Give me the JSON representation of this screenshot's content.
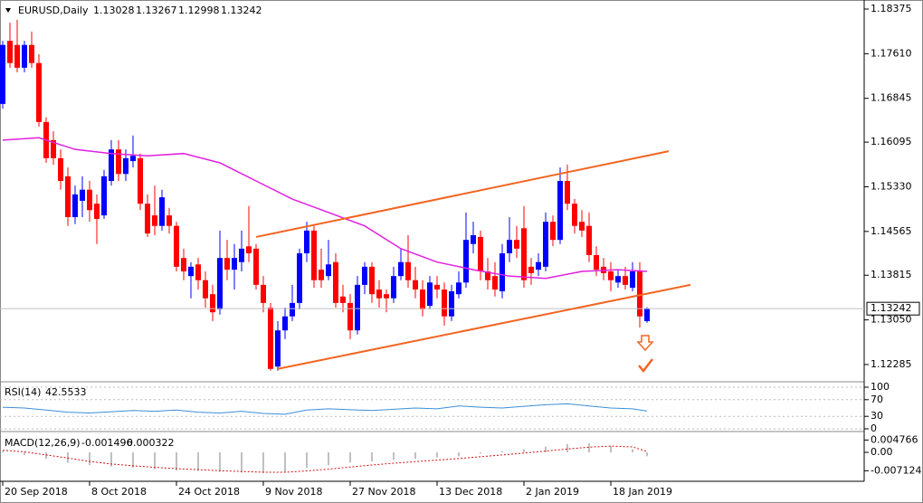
{
  "chart_data": {
    "type": "candlestick",
    "title": "EURUSD,Daily",
    "categories": [
      "20 Sep 2018",
      null,
      null,
      null,
      null,
      null,
      null,
      null,
      null,
      null,
      null,
      null,
      "8 Oct 2018",
      null,
      null,
      null,
      null,
      null,
      null,
      null,
      null,
      null,
      null,
      null,
      "24 Oct 2018",
      null,
      null,
      null,
      null,
      null,
      null,
      null,
      null,
      null,
      null,
      null,
      "9 Nov 2018",
      null,
      null,
      null,
      null,
      null,
      null,
      null,
      null,
      null,
      null,
      null,
      "27 Nov 2018",
      null,
      null,
      null,
      null,
      null,
      null,
      null,
      null,
      null,
      null,
      null,
      "13 Dec 2018",
      null,
      null,
      null,
      null,
      null,
      null,
      null,
      null,
      null,
      null,
      null,
      "2 Jan 2019",
      null,
      null,
      null,
      null,
      null,
      null,
      null,
      null,
      null,
      null,
      null,
      "18 Jan 2019",
      null,
      null,
      null,
      null,
      null
    ],
    "open": [
      1.1675,
      1.1783,
      1.1776,
      1.1737,
      1.1776,
      1.1745,
      1.1644,
      1.1613,
      1.1582,
      1.1551,
      1.1481,
      1.1509,
      1.1528,
      1.1504,
      1.1484,
      1.1543,
      1.1597,
      1.1555,
      1.1577,
      1.1582,
      1.1504,
      1.1484,
      1.1466,
      1.1484,
      1.1466,
      1.1411,
      1.138,
      1.14,
      1.1373,
      1.1349,
      1.1323,
      1.1411,
      1.1391,
      1.1404,
      1.1431,
      1.1427,
      1.1365,
      1.1326,
      1.1225,
      1.1287,
      1.1311,
      1.1334,
      1.1419,
      1.1458,
      1.1391,
      1.138,
      1.1404,
      1.1345,
      1.1334,
      1.1287,
      1.1365,
      1.1396,
      1.1357,
      1.1349,
      1.1342,
      1.138,
      1.1404,
      1.1373,
      1.1357,
      1.1329,
      1.1365,
      1.1357,
      1.1311,
      1.1349,
      1.1369,
      1.1435,
      1.1447,
      1.1388,
      1.138,
      1.1354,
      1.1419,
      1.1442,
      1.1462,
      1.1396,
      1.1391,
      1.1396,
      1.1473,
      1.1442,
      1.1543,
      1.1504,
      1.1473,
      1.1466,
      1.1416,
      1.1396,
      1.1388,
      1.1369,
      1.138,
      1.136,
      1.1388,
      1.13028
    ],
    "high": [
      1.1783,
      1.1814,
      1.1819,
      1.1783,
      1.1799,
      1.176,
      1.1652,
      1.1628,
      1.1597,
      1.1566,
      1.1535,
      1.1551,
      1.1543,
      1.152,
      1.1562,
      1.1613,
      1.1613,
      1.1597,
      1.1621,
      1.159,
      1.152,
      1.1535,
      1.1528,
      1.1497,
      1.1473,
      1.1427,
      1.1404,
      1.1411,
      1.1388,
      1.1365,
      1.1458,
      1.1442,
      1.1435,
      1.1458,
      1.15,
      1.1435,
      1.138,
      1.1334,
      1.1303,
      1.1326,
      1.1365,
      1.1427,
      1.1473,
      1.1466,
      1.1427,
      1.1442,
      1.1419,
      1.1365,
      1.1349,
      1.138,
      1.1404,
      1.1404,
      1.1373,
      1.1357,
      1.1396,
      1.1427,
      1.145,
      1.1396,
      1.1373,
      1.138,
      1.138,
      1.1369,
      1.1365,
      1.1388,
      1.1489,
      1.1473,
      1.1458,
      1.1411,
      1.1404,
      1.1435,
      1.1481,
      1.1466,
      1.15,
      1.1411,
      1.1419,
      1.1489,
      1.1484,
      1.1566,
      1.1571,
      1.1512,
      1.1493,
      1.1489,
      1.1431,
      1.1411,
      1.1404,
      1.1391,
      1.1396,
      1.1404,
      1.1404,
      1.13267
    ],
    "low": [
      1.1667,
      1.1737,
      1.1729,
      1.1729,
      1.1737,
      1.1636,
      1.1574,
      1.1571,
      1.1528,
      1.1466,
      1.1469,
      1.1481,
      1.1473,
      1.1435,
      1.1478,
      1.1535,
      1.1543,
      1.1543,
      1.1566,
      1.1493,
      1.1447,
      1.145,
      1.1458,
      1.1453,
      1.1388,
      1.1373,
      1.1342,
      1.1357,
      1.1326,
      1.1303,
      1.1314,
      1.1373,
      1.1357,
      1.1388,
      1.1404,
      1.1357,
      1.1318,
      1.1218,
      1.1218,
      1.1272,
      1.1303,
      1.1323,
      1.1404,
      1.136,
      1.136,
      1.1373,
      1.1326,
      1.1318,
      1.1272,
      1.128,
      1.1349,
      1.1334,
      1.1326,
      1.1318,
      1.1334,
      1.1373,
      1.136,
      1.1342,
      1.1311,
      1.1323,
      1.1342,
      1.1295,
      1.1303,
      1.1342,
      1.136,
      1.1419,
      1.1373,
      1.1357,
      1.1345,
      1.1342,
      1.1404,
      1.1411,
      1.136,
      1.1365,
      1.138,
      1.1388,
      1.1431,
      1.1435,
      1.1493,
      1.1453,
      1.1447,
      1.1404,
      1.138,
      1.1373,
      1.1354,
      1.136,
      1.1357,
      1.1354,
      1.1292,
      1.12998
    ],
    "close": [
      1.1776,
      1.1745,
      1.1737,
      1.1776,
      1.1745,
      1.1644,
      1.1582,
      1.1582,
      1.1543,
      1.1481,
      1.152,
      1.1528,
      1.1493,
      1.1478,
      1.1551,
      1.1597,
      1.1555,
      1.1582,
      1.1586,
      1.1504,
      1.1453,
      1.1466,
      1.1515,
      1.1466,
      1.1396,
      1.1388,
      1.1396,
      1.1373,
      1.1342,
      1.1318,
      1.1411,
      1.1391,
      1.1411,
      1.1427,
      1.1419,
      1.1365,
      1.1334,
      1.1221,
      1.1287,
      1.1311,
      1.1334,
      1.1419,
      1.1458,
      1.1373,
      1.1373,
      1.14,
      1.1334,
      1.1334,
      1.1287,
      1.1365,
      1.1396,
      1.1349,
      1.1342,
      1.1342,
      1.138,
      1.1404,
      1.1373,
      1.1357,
      1.1323,
      1.1369,
      1.1357,
      1.1311,
      1.1354,
      1.1369,
      1.1442,
      1.145,
      1.1388,
      1.1373,
      1.1357,
      1.1419,
      1.1442,
      1.1427,
      1.1373,
      1.1385,
      1.1404,
      1.1473,
      1.1442,
      1.1543,
      1.1504,
      1.1466,
      1.1458,
      1.1416,
      1.1391,
      1.1385,
      1.1373,
      1.138,
      1.1365,
      1.1388,
      1.1311,
      1.13242
    ],
    "bull_color": "#0000ff",
    "bear_color": "#ff0000",
    "ylim": [
      1.12005,
      1.1853
    ],
    "yticks": [
      1.18375,
      {
        "value": 1.1761,
        "label": "1.17610"
      },
      1.16845,
      1.16095,
      {
        "value": 1.1533,
        "label": "1.15330"
      },
      1.14565,
      1.13815,
      {
        "value": 1.1305,
        "label": "1.13050"
      },
      1.12285
    ],
    "moving_average": {
      "color": "#e020e0",
      "x": [
        0,
        5,
        10,
        15,
        20,
        25,
        30,
        35,
        40,
        45,
        50,
        55,
        60,
        65,
        70,
        75,
        80,
        85,
        89
      ],
      "values": [
        1.1613,
        1.1617,
        1.1597,
        1.159,
        1.1586,
        1.159,
        1.1574,
        1.1543,
        1.1512,
        1.1489,
        1.1466,
        1.1427,
        1.1404,
        1.1391,
        1.138,
        1.1376,
        1.1388,
        1.1391,
        1.1388
      ]
    },
    "trendlines": {
      "color": "#f26522",
      "lines": [
        {
          "x": [
            35,
            92
          ],
          "values": [
            1.1447,
            1.1594
          ]
        },
        {
          "x": [
            38,
            95
          ],
          "values": [
            1.1221,
            1.1365
          ]
        }
      ]
    },
    "indicator_x": [
      0,
      3,
      6,
      9,
      12,
      15,
      18,
      21,
      24,
      27,
      30,
      33,
      36,
      39,
      42,
      45,
      48,
      51,
      54,
      57,
      60,
      63,
      66,
      69,
      72,
      75,
      78,
      81,
      84,
      87,
      89
    ],
    "rsi": {
      "title": "RSI(14)",
      "color": "#3c8fd8",
      "ylim": [
        0,
        100
      ],
      "yticks": [
        100,
        70,
        30,
        0
      ],
      "values": [
        52,
        50,
        45,
        40,
        38,
        41,
        44,
        42,
        45,
        40,
        38,
        42,
        37,
        35,
        45,
        48,
        46,
        44,
        47,
        50,
        48,
        55,
        52,
        50,
        54,
        58,
        60,
        55,
        50,
        48,
        42.5533
      ]
    },
    "macd": {
      "title": "MACD(12,26,9)",
      "color": "#c0c0c0",
      "signal_color": "#d01010",
      "ylim": [
        -0.0105,
        0.007
      ],
      "yticks": [
        0.004766,
        {
          "value": 0,
          "label": "0.00"
        },
        -0.007124
      ],
      "values": [
        0.0005,
        -0.001,
        -0.0025,
        -0.004,
        -0.005,
        -0.0055,
        -0.006,
        -0.0065,
        -0.007,
        -0.0072,
        -0.0075,
        -0.0078,
        -0.008,
        -0.0075,
        -0.006,
        -0.005,
        -0.004,
        -0.0035,
        -0.003,
        -0.0025,
        -0.002,
        -0.0015,
        -0.0005,
        0.0005,
        0.0012,
        0.0022,
        0.0032,
        0.0035,
        0.0025,
        0.0012,
        -0.001496
      ],
      "signal": [
        0.0008,
        0.0002,
        -0.001,
        -0.0022,
        -0.0035,
        -0.0045,
        -0.0052,
        -0.0058,
        -0.0063,
        -0.0067,
        -0.0071,
        -0.0074,
        -0.0077,
        -0.0077,
        -0.0072,
        -0.0065,
        -0.0057,
        -0.0049,
        -0.0042,
        -0.0036,
        -0.003,
        -0.0024,
        -0.0017,
        -0.001,
        -0.0003,
        0.0005,
        0.0013,
        0.002,
        0.0024,
        0.0021,
        0.000322
      ]
    }
  }
}
